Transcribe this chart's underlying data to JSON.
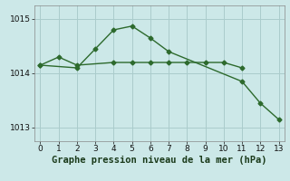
{
  "xlabel": "Graphe pression niveau de la mer (hPa)",
  "line1_x": [
    0,
    1,
    2,
    4,
    5,
    6,
    7,
    8,
    9,
    10,
    11
  ],
  "line1_y": [
    1014.15,
    1014.3,
    1014.15,
    1014.2,
    1014.2,
    1014.2,
    1014.2,
    1014.2,
    1014.2,
    1014.2,
    1014.1
  ],
  "line2_x": [
    0,
    2,
    3,
    4,
    5,
    6,
    7,
    11,
    12,
    13
  ],
  "line2_y": [
    1014.15,
    1014.1,
    1014.45,
    1014.8,
    1014.87,
    1014.65,
    1014.4,
    1013.85,
    1013.45,
    1013.15
  ],
  "ylim": [
    1012.75,
    1015.25
  ],
  "yticks": [
    1013,
    1014,
    1015
  ],
  "xticks": [
    0,
    1,
    2,
    3,
    4,
    5,
    6,
    7,
    8,
    9,
    10,
    11,
    12,
    13
  ],
  "line_color": "#2d6a2d",
  "bg_color": "#cce8e8",
  "grid_color": "#aacccc",
  "xlabel_color": "#1a3a1a",
  "xlabel_fontsize": 7.5
}
